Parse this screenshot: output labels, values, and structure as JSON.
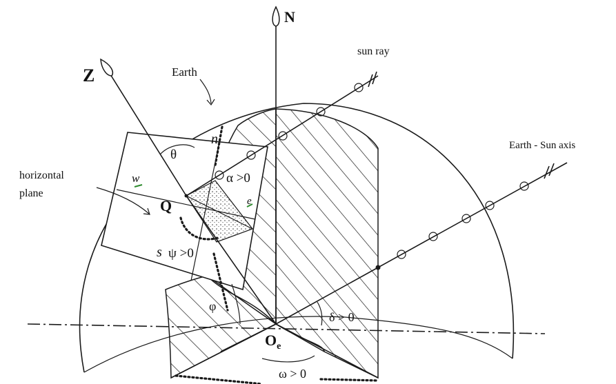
{
  "labels": {
    "north": "N",
    "zenith": "Z",
    "earth": "Earth",
    "sun_ray": "sun ray",
    "earth_sun_axis": "Earth - Sun axis",
    "horizontal_plane_line1": "horizontal",
    "horizontal_plane_line2": "plane",
    "point_q": "Q",
    "north_dir": "n",
    "west_dir": "w",
    "east_dir": "e",
    "south_dir": "s",
    "theta": "θ",
    "alpha": "α >0",
    "psi": "ψ >0",
    "phi": "φ",
    "delta": "δ > 0",
    "center_main": "O",
    "center_sub": "e",
    "omega": "ω > 0"
  },
  "colors": {
    "ink": "#1a1a1a",
    "direction_marker": "#2e8b2e",
    "background": "#ffffff"
  }
}
